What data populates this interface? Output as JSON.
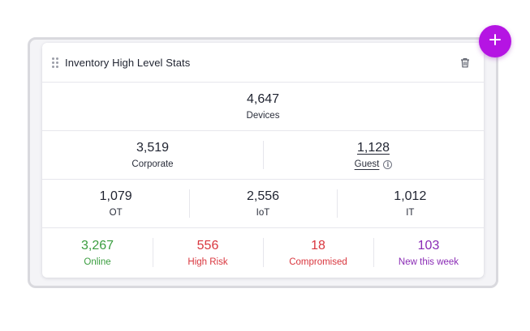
{
  "widget": {
    "title": "Inventory High Level Stats",
    "icons": {
      "drag": "drag-handle-icon",
      "delete": "trash-icon",
      "add": "plus-icon",
      "info": "info-icon"
    },
    "total": {
      "value": "4,647",
      "label": "Devices"
    },
    "segments": [
      {
        "value": "3,519",
        "label": "Corporate"
      },
      {
        "value": "1,128",
        "label": "Guest"
      }
    ],
    "categories": [
      {
        "value": "1,079",
        "label": "OT"
      },
      {
        "value": "2,556",
        "label": "IoT"
      },
      {
        "value": "1,012",
        "label": "IT"
      }
    ],
    "status": [
      {
        "value": "3,267",
        "label": "Online",
        "color": "#3a9d3f"
      },
      {
        "value": "556",
        "label": "High Risk",
        "color": "#d9363e"
      },
      {
        "value": "18",
        "label": "Compromised",
        "color": "#d9363e"
      },
      {
        "value": "103",
        "label": "New this week",
        "color": "#8a2bb5"
      }
    ]
  },
  "colors": {
    "accent": "#b514e3"
  }
}
